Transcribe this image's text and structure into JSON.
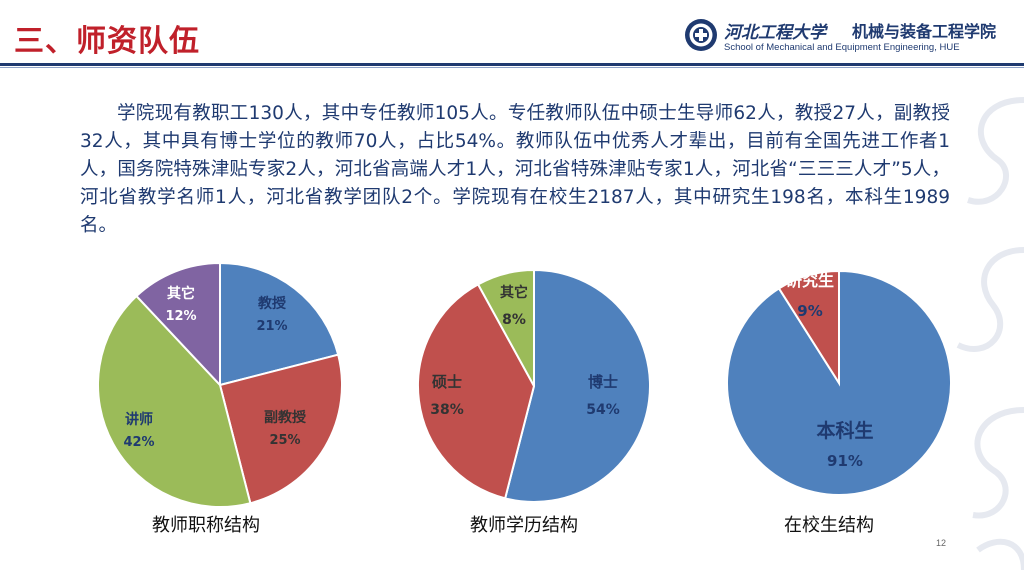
{
  "header": {
    "title": "三、师资队伍",
    "university_name": "河北工程大学",
    "school_name": "机械与装备工程学院",
    "school_name_en": "School of Mechanical and Equipment Engineering, HUE"
  },
  "intro_text": "学院现有教职工130人，其中专任教师105人。专任教师队伍中硕士生导师62人，教授27人，副教授32人，其中具有博士学位的教师70人，占比54%。教师队伍中优秀人才辈出，目前有全国先进工作者1人，国务院特殊津贴专家2人，河北省高端人才1人，河北省特殊津贴专家1人，河北省“三三三人才”5人，河北省教学名师1人，河北省教学团队2个。学院现有在校生2187人，其中研究生198名，本科生1989名。",
  "page_number": "12",
  "colors": {
    "title_red": "#c0202a",
    "navy": "#1f3a70",
    "blue": "#4f81bd",
    "red": "#c0504d",
    "green": "#9bbb59",
    "purple": "#8064a2"
  },
  "chart_data": [
    {
      "type": "pie",
      "title": "教师职称结构",
      "slices": [
        {
          "label": "教授",
          "value": 21,
          "display": "21%",
          "color": "#4f81bd"
        },
        {
          "label": "副教授",
          "value": 25,
          "display": "25%",
          "color": "#c0504d"
        },
        {
          "label": "讲师",
          "value": 42,
          "display": "42%",
          "color": "#9bbb59"
        },
        {
          "label": "其它",
          "value": 12,
          "display": "12%",
          "color": "#8064a2"
        }
      ]
    },
    {
      "type": "pie",
      "title": "教师学历结构",
      "slices": [
        {
          "label": "博士",
          "value": 54,
          "display": "54%",
          "color": "#4f81bd"
        },
        {
          "label": "硕士",
          "value": 38,
          "display": "38%",
          "color": "#c0504d"
        },
        {
          "label": "其它",
          "value": 8,
          "display": "8%",
          "color": "#9bbb59"
        }
      ]
    },
    {
      "type": "pie",
      "title": "在校生结构",
      "slices": [
        {
          "label": "本科生",
          "value": 91,
          "display": "91%",
          "color": "#4f81bd"
        },
        {
          "label": "研究生",
          "value": 9,
          "display": "9%",
          "color": "#c0504d"
        }
      ]
    }
  ]
}
